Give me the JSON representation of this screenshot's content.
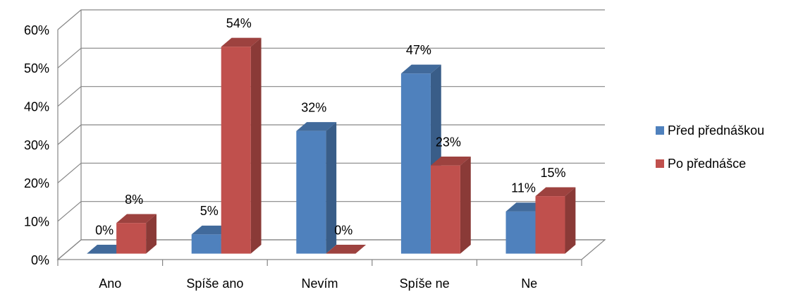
{
  "chart_data": {
    "type": "bar3d",
    "categories": [
      "Ano",
      "Spíše ano",
      "Nevím",
      "Spíše ne",
      "Ne"
    ],
    "series": [
      {
        "name": "Před přednáškou",
        "color": "#4f81bd",
        "values": [
          0,
          5,
          32,
          47,
          11
        ],
        "value_labels": [
          "0%",
          "5%",
          "32%",
          "47%",
          "11%"
        ]
      },
      {
        "name": "Po přednášce",
        "color": "#c0504d",
        "values": [
          8,
          54,
          0,
          23,
          15
        ],
        "value_labels": [
          "8%",
          "54%",
          "0%",
          "23%",
          "15%"
        ]
      }
    ],
    "ylim": [
      0,
      60
    ],
    "yticks": [
      {
        "value": 0,
        "label": "0%"
      },
      {
        "value": 10,
        "label": "10%"
      },
      {
        "value": 20,
        "label": "20%"
      },
      {
        "value": 30,
        "label": "30%"
      },
      {
        "value": 40,
        "label": "40%"
      },
      {
        "value": 50,
        "label": "50%"
      },
      {
        "value": 60,
        "label": "60%"
      }
    ],
    "grid": true,
    "legend": "right"
  }
}
